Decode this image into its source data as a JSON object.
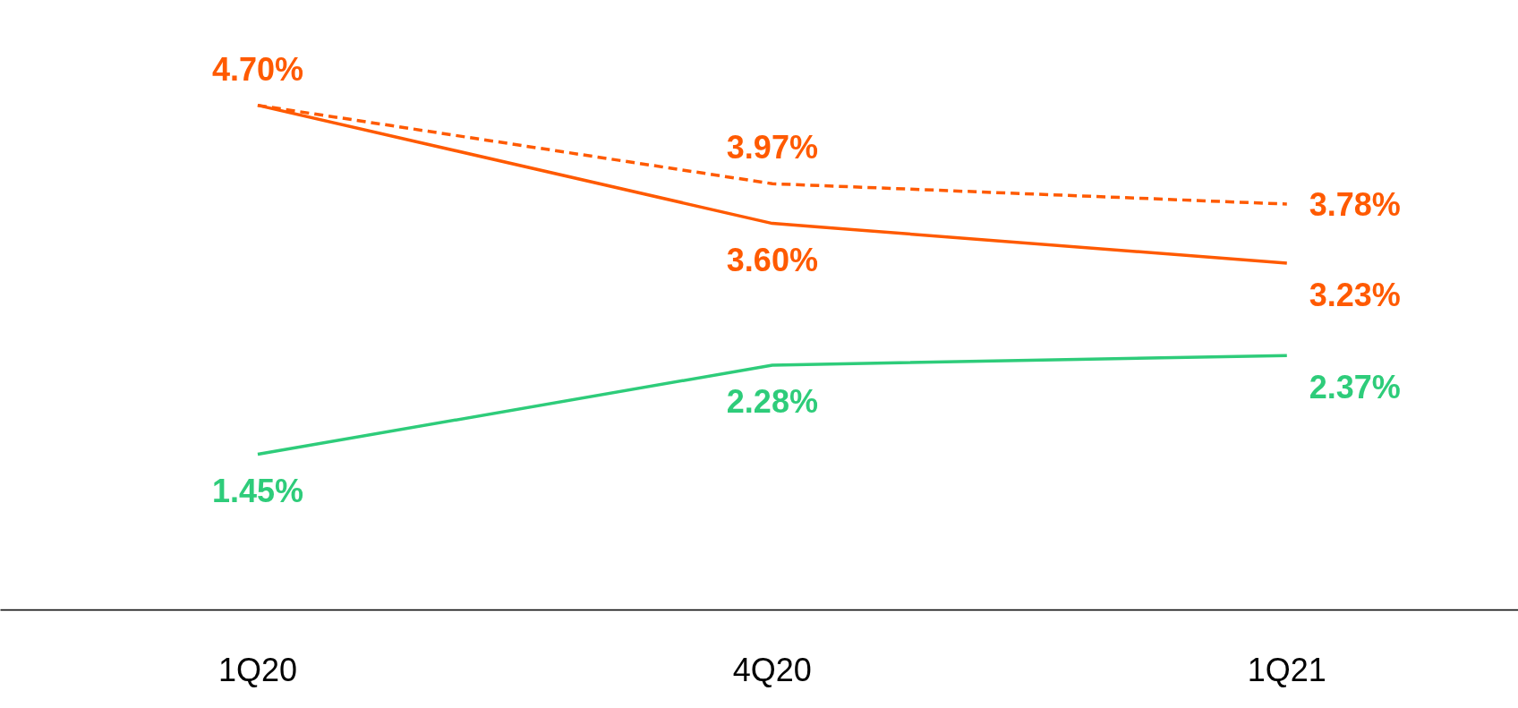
{
  "chart_data": {
    "type": "line",
    "categories": [
      "1Q20",
      "4Q20",
      "1Q21"
    ],
    "marker": "none",
    "tick_labels": "x",
    "series": [
      {
        "color": "#ff5a00",
        "values": [
          4.7,
          3.97,
          3.78
        ],
        "line_style": "dashed",
        "value_labels": [
          "4.70%",
          "3.97%",
          "3.78%"
        ]
      },
      {
        "color": "#ff5a00",
        "values": [
          4.7,
          3.6,
          3.23
        ],
        "line_style": "solid",
        "value_labels": [
          null,
          "3.60%",
          "3.23%"
        ]
      },
      {
        "color": "#2ecc7a",
        "values": [
          1.45,
          2.28,
          2.37
        ],
        "line_style": "solid",
        "value_labels": [
          "1.45%",
          "2.28%",
          "2.37%"
        ]
      }
    ]
  }
}
